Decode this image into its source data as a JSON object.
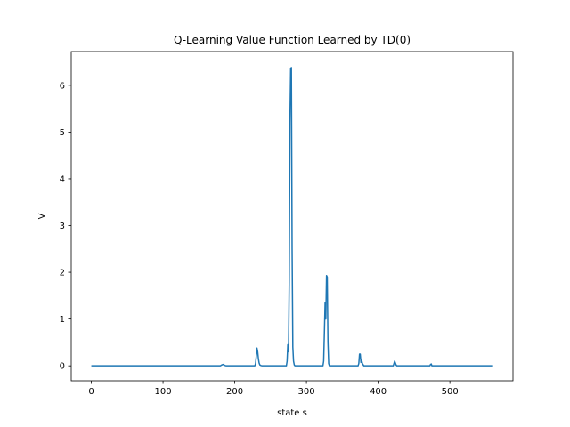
{
  "chart_data": {
    "type": "line",
    "title": "Q-Learning Value Function Learned by TD(0)",
    "xlabel": "state s",
    "ylabel": "V",
    "xlim": [
      -28,
      588
    ],
    "ylim": [
      -0.32,
      6.72
    ],
    "xticks": [
      0,
      100,
      200,
      300,
      400,
      500
    ],
    "yticks": [
      0,
      1,
      2,
      3,
      4,
      5,
      6
    ],
    "grid": false,
    "line_color": "#1f77b4",
    "series": [
      {
        "x": [
          0,
          180,
          182,
          184,
          186,
          188,
          228,
          229,
          230,
          231,
          232,
          233,
          234,
          235,
          236,
          237,
          238,
          272,
          273,
          274,
          275,
          276,
          277,
          278,
          279,
          280,
          281,
          282,
          283,
          284,
          323,
          324,
          325,
          326,
          327,
          328,
          329,
          330,
          331,
          332,
          372,
          373,
          374,
          375,
          376,
          377,
          378,
          380,
          421,
          422,
          423,
          424,
          425,
          426,
          472,
          473,
          474,
          475,
          559
        ],
        "y": [
          0,
          0,
          0.02,
          0.03,
          0.01,
          0,
          0,
          0.05,
          0.2,
          0.38,
          0.3,
          0.15,
          0.06,
          0.02,
          0.01,
          0.005,
          0,
          0,
          0.1,
          0.45,
          0.3,
          1.8,
          5.2,
          6.35,
          6.38,
          2.5,
          0.4,
          0.1,
          0.02,
          0,
          0,
          0.1,
          0.7,
          1.35,
          1.0,
          1.93,
          1.9,
          0.5,
          0.05,
          0,
          0,
          0.05,
          0.25,
          0.25,
          0.07,
          0.12,
          0.05,
          0,
          0,
          0.05,
          0.1,
          0.06,
          0.02,
          0,
          0,
          0.03,
          0.04,
          0,
          0
        ]
      }
    ]
  }
}
